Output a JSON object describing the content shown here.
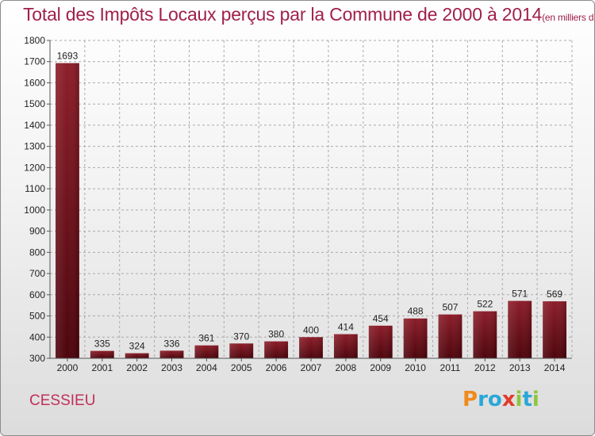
{
  "header": {
    "title": "Total des Impôts Locaux perçus par la Commune de 2000 à 2014",
    "unit": "(en milliers d'€)"
  },
  "commune": "CESSIEU",
  "logo": {
    "letters": [
      "P",
      "r",
      "o",
      "x",
      "i",
      "t",
      "i"
    ],
    "colors": [
      "#f08a1c",
      "#2aa7d8",
      "#2aa7d8",
      "#e23b2a",
      "#8cc63f",
      "#2aa7d8",
      "#8cc63f"
    ]
  },
  "chart_data": {
    "type": "bar",
    "categories": [
      "2000",
      "2001",
      "2002",
      "2003",
      "2004",
      "2005",
      "2006",
      "2007",
      "2008",
      "2009",
      "2010",
      "2011",
      "2012",
      "2013",
      "2014"
    ],
    "values": [
      1693,
      335,
      324,
      336,
      361,
      370,
      380,
      400,
      414,
      454,
      488,
      507,
      522,
      571,
      569
    ],
    "title": "Total des Impôts Locaux perçus par la Commune de 2000 à 2014",
    "xlabel": "",
    "ylabel": "",
    "ylim": [
      300,
      1800
    ],
    "yticks": [
      300,
      400,
      500,
      600,
      700,
      800,
      900,
      1000,
      1100,
      1200,
      1300,
      1400,
      1500,
      1600,
      1700,
      1800
    ],
    "grid": true,
    "bar_color": "#7a0a14"
  }
}
